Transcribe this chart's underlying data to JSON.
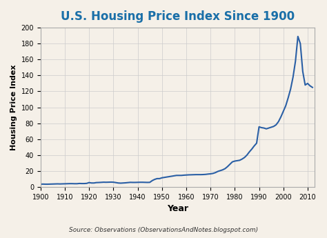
{
  "title": "U.S. Housing Price Index Since 1900",
  "xlabel": "Year",
  "ylabel": "Housing Price Index",
  "source_text": "Source: Observations (ObservationsAndNotes.blogspot.com)",
  "line_color": "#2a5fa5",
  "background_color": "#f5f0e8",
  "grid_color": "#cccccc",
  "title_color": "#1a6fa8",
  "xlim": [
    1900,
    2013
  ],
  "ylim": [
    0,
    200
  ],
  "xticks": [
    1900,
    1910,
    1920,
    1930,
    1940,
    1950,
    1960,
    1970,
    1980,
    1990,
    2000,
    2010
  ],
  "yticks": [
    0,
    20,
    40,
    60,
    80,
    100,
    120,
    140,
    160,
    180,
    200
  ],
  "years": [
    1900,
    1901,
    1902,
    1903,
    1904,
    1905,
    1906,
    1907,
    1908,
    1909,
    1910,
    1911,
    1912,
    1913,
    1914,
    1915,
    1916,
    1917,
    1918,
    1919,
    1920,
    1921,
    1922,
    1923,
    1924,
    1925,
    1926,
    1927,
    1928,
    1929,
    1930,
    1931,
    1932,
    1933,
    1934,
    1935,
    1936,
    1937,
    1938,
    1939,
    1940,
    1941,
    1942,
    1943,
    1944,
    1945,
    1946,
    1947,
    1948,
    1949,
    1950,
    1951,
    1952,
    1953,
    1954,
    1955,
    1956,
    1957,
    1958,
    1959,
    1960,
    1961,
    1962,
    1963,
    1964,
    1965,
    1966,
    1967,
    1968,
    1969,
    1970,
    1971,
    1972,
    1973,
    1974,
    1975,
    1976,
    1977,
    1978,
    1979,
    1980,
    1981,
    1982,
    1983,
    1984,
    1985,
    1986,
    1987,
    1988,
    1989,
    1990,
    1991,
    1992,
    1993,
    1994,
    1995,
    1996,
    1997,
    1998,
    1999,
    2000,
    2001,
    2002,
    2003,
    2004,
    2005,
    2006,
    2007,
    2008,
    2009,
    2010,
    2011,
    2012
  ],
  "values": [
    3.5,
    3.6,
    3.5,
    3.5,
    3.6,
    3.7,
    3.8,
    3.9,
    3.8,
    3.9,
    4.0,
    4.1,
    4.2,
    4.2,
    4.1,
    4.1,
    4.4,
    4.3,
    4.3,
    4.5,
    5.5,
    5.0,
    5.0,
    5.5,
    5.6,
    5.8,
    6.0,
    5.9,
    6.0,
    6.1,
    6.0,
    5.5,
    5.0,
    4.8,
    5.0,
    5.2,
    5.5,
    5.8,
    5.7,
    5.7,
    5.8,
    5.9,
    5.9,
    5.8,
    5.7,
    5.8,
    8.0,
    9.5,
    10.5,
    10.5,
    11.5,
    12.0,
    12.5,
    13.0,
    13.5,
    14.0,
    14.5,
    14.5,
    14.5,
    14.8,
    15.0,
    15.2,
    15.3,
    15.4,
    15.5,
    15.5,
    15.5,
    15.6,
    15.8,
    16.2,
    16.5,
    17.0,
    18.0,
    19.5,
    20.5,
    21.5,
    23.0,
    25.5,
    28.5,
    31.5,
    32.5,
    33.0,
    33.5,
    35.0,
    37.0,
    40.0,
    44.0,
    47.5,
    51.5,
    55.0,
    75.5,
    74.5,
    74.0,
    73.0,
    74.0,
    75.0,
    76.0,
    78.0,
    82.0,
    88.0,
    95.0,
    102.0,
    112.0,
    123.0,
    138.0,
    158.0,
    189.0,
    180.0,
    145.0,
    128.0,
    130.0,
    127.0,
    125.0
  ]
}
